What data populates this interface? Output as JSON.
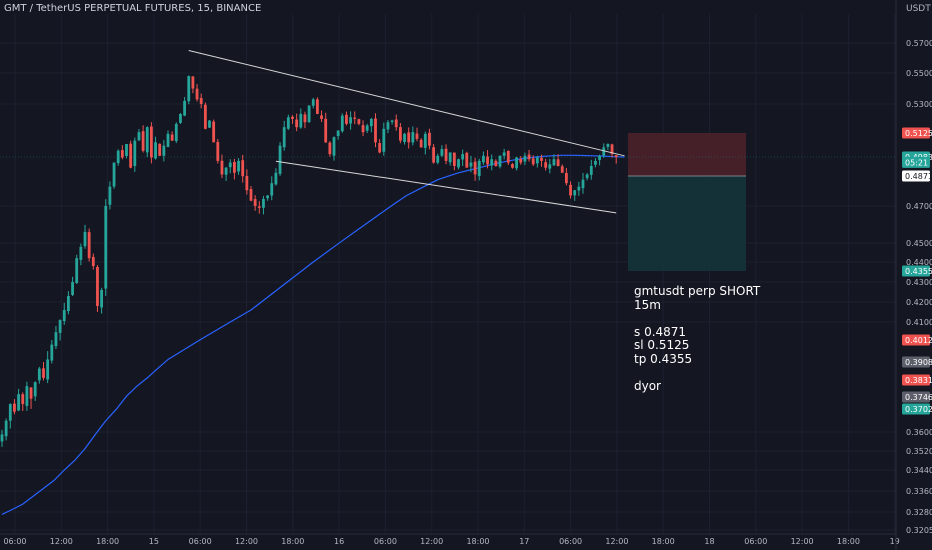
{
  "header": {
    "title": "GMT / TetherUS PERPETUAL FUTURES, 15, BINANCE",
    "unit": "USDT"
  },
  "note": {
    "lines": [
      "gmtusdt perp SHORT",
      "15m",
      "",
      "s 0.4871",
      "sl 0.5125",
      "tp 0.4355",
      "",
      "dyor"
    ]
  },
  "colors": {
    "background": "#141722",
    "up": "#26a69a",
    "down": "#ef5350",
    "ma": "#2962ff",
    "trendline": "#d8d8d8",
    "stop_zone": "#4a2129",
    "target_zone": "#15333a"
  },
  "chart_data": {
    "type": "candlestick",
    "x_ticks": [
      "06:00",
      "12:00",
      "18:00",
      "15",
      "06:00",
      "12:00",
      "18:00",
      "16",
      "06:00",
      "12:00",
      "18:00",
      "17",
      "06:00",
      "12:00",
      "18:00",
      "18",
      "06:00",
      "12:00",
      "18:00",
      "19"
    ],
    "y_ticks": [
      "0.5700",
      "0.5500",
      "0.5300",
      "0.4700",
      "0.4500",
      "0.4400",
      "0.4300",
      "0.4200",
      "0.4100",
      "0.3600",
      "0.3520",
      "0.3440",
      "0.3360",
      "0.3280",
      "0.3205"
    ],
    "price_tags": [
      {
        "label": "0.5125",
        "value": 0.5125,
        "color": "#ef5350"
      },
      {
        "label": "0.4983",
        "value": 0.4983,
        "color": "#26a69a"
      },
      {
        "label": "05:21",
        "value": 0.4951,
        "color": "#26a69a"
      },
      {
        "label": "0.4871",
        "value": 0.4871,
        "color": "#ffffff"
      },
      {
        "label": "0.4355",
        "value": 0.4355,
        "color": "#26a69a"
      },
      {
        "label": "0.4012",
        "value": 0.4012,
        "color": "#ef5350"
      },
      {
        "label": "0.3908",
        "value": 0.3908,
        "color": "#5d606b"
      },
      {
        "label": "0.3831",
        "value": 0.3831,
        "color": "#ef5350"
      },
      {
        "label": "0.3746",
        "value": 0.3746,
        "color": "#5d606b"
      },
      {
        "label": "0.3702",
        "value": 0.3702,
        "color": "#26a69a"
      }
    ],
    "position": {
      "side": "short",
      "entry": 0.4871,
      "stop": 0.5125,
      "target": 0.4355
    },
    "channel": {
      "upper": [
        {
          "time_index": 45,
          "price": 0.565
        },
        {
          "time_index": 150,
          "price": 0.499
        }
      ],
      "lower": [
        {
          "time_index": 66,
          "price": 0.4958
        },
        {
          "time_index": 148,
          "price": 0.4663
        }
      ]
    },
    "close_series": [
      0.359,
      0.365,
      0.372,
      0.369,
      0.376,
      0.372,
      0.38,
      0.374,
      0.382,
      0.388,
      0.384,
      0.392,
      0.399,
      0.405,
      0.411,
      0.416,
      0.423,
      0.43,
      0.442,
      0.448,
      0.456,
      0.442,
      0.438,
      0.418,
      0.426,
      0.47,
      0.481,
      0.495,
      0.502,
      0.498,
      0.506,
      0.492,
      0.508,
      0.513,
      0.502,
      0.516,
      0.498,
      0.507,
      0.499,
      0.505,
      0.512,
      0.508,
      0.518,
      0.524,
      0.532,
      0.548,
      0.54,
      0.533,
      0.53,
      0.515,
      0.52,
      0.507,
      0.496,
      0.488,
      0.492,
      0.495,
      0.489,
      0.496,
      0.487,
      0.479,
      0.473,
      0.47,
      0.469,
      0.474,
      0.476,
      0.483,
      0.489,
      0.505,
      0.516,
      0.522,
      0.521,
      0.516,
      0.524,
      0.519,
      0.529,
      0.533,
      0.524,
      0.521,
      0.507,
      0.5,
      0.51,
      0.514,
      0.523,
      0.518,
      0.522,
      0.521,
      0.518,
      0.513,
      0.517,
      0.521,
      0.507,
      0.501,
      0.515,
      0.519,
      0.52,
      0.516,
      0.508,
      0.512,
      0.507,
      0.513,
      0.509,
      0.504,
      0.512,
      0.505,
      0.495,
      0.499,
      0.503,
      0.496,
      0.501,
      0.493,
      0.497,
      0.5,
      0.492,
      0.495,
      0.488,
      0.496,
      0.499,
      0.494,
      0.497,
      0.493,
      0.499,
      0.501,
      0.495,
      0.492,
      0.498,
      0.495,
      0.499,
      0.497,
      0.494,
      0.498,
      0.496,
      0.492,
      0.494,
      0.497,
      0.493,
      0.489,
      0.483,
      0.476,
      0.479,
      0.481,
      0.485,
      0.488,
      0.493,
      0.496,
      0.499,
      0.504,
      0.506,
      0.5,
      0.4983
    ],
    "ma_series": [
      0.327,
      0.329,
      0.331,
      0.334,
      0.337,
      0.34,
      0.344,
      0.348,
      0.353,
      0.359,
      0.365,
      0.37,
      0.375,
      0.38,
      0.384,
      0.388,
      0.392,
      0.395,
      0.398,
      0.401,
      0.404,
      0.407,
      0.41,
      0.413,
      0.416,
      0.42,
      0.424,
      0.428,
      0.432,
      0.436,
      0.44,
      0.444,
      0.448,
      0.452,
      0.456,
      0.46,
      0.464,
      0.468,
      0.472,
      0.476,
      0.479,
      0.482,
      0.485,
      0.487,
      0.489,
      0.4905,
      0.492,
      0.4935,
      0.495,
      0.4962,
      0.4972,
      0.498,
      0.4986,
      0.499,
      0.4993,
      0.4993,
      0.4992,
      0.499,
      0.4988,
      0.4985,
      0.4983
    ],
    "ma_start_index": 0,
    "ma_step": 2.5
  }
}
